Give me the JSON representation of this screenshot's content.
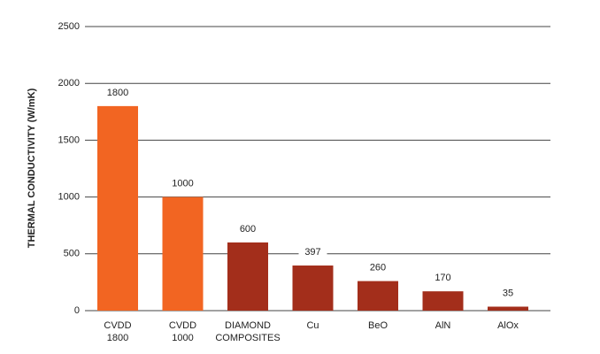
{
  "chart_data": {
    "type": "bar",
    "y_label": "THERMAL CONDUCTIVITY (W/mK)",
    "categories": [
      "CVDD\n1800",
      "CVDD\n1000",
      "DIAMOND\nCOMPOSITES",
      "Cu",
      "BeO",
      "AlN",
      "AlOx"
    ],
    "values": [
      1800,
      1000,
      600,
      397,
      260,
      170,
      35
    ],
    "colors": [
      "#f26522",
      "#f26522",
      "#a32e1b",
      "#a32e1b",
      "#a32e1b",
      "#a32e1b",
      "#a32e1b"
    ],
    "ylim": [
      0,
      2500
    ],
    "yticks": [
      0,
      500,
      1000,
      1500,
      2000,
      2500
    ],
    "grid": true
  }
}
